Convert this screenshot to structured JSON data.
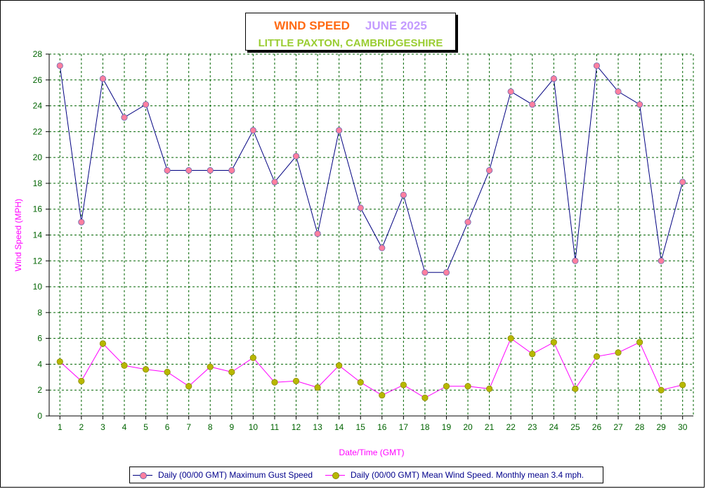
{
  "title": {
    "main": "WIND SPEED",
    "month": "JUNE 2025",
    "subtitle": "LITTLE PAXTON, CAMBRIDGESHIRE"
  },
  "colors": {
    "title_main": "#ff6a13",
    "title_month": "#c39bff",
    "subtitle": "#9acd32",
    "axis_label": "#ff00ff",
    "tick_label": "#006400",
    "grid": "#006400",
    "gust_line": "#000080",
    "gust_marker": "#ff7f9f",
    "mean_line": "#ff00ff",
    "mean_marker": "#b8b800"
  },
  "chart_data": {
    "type": "line",
    "xlabel": "Date/Time (GMT)",
    "ylabel": "Wind Speed (MPH)",
    "ylim": [
      0,
      28
    ],
    "yticks": [
      0,
      2,
      4,
      6,
      8,
      10,
      12,
      14,
      16,
      18,
      20,
      22,
      24,
      26,
      28
    ],
    "categories": [
      "1",
      "2",
      "3",
      "4",
      "5",
      "6",
      "7",
      "8",
      "9",
      "10",
      "11",
      "12",
      "13",
      "14",
      "15",
      "16",
      "17",
      "18",
      "19",
      "20",
      "21",
      "22",
      "23",
      "24",
      "25",
      "26",
      "27",
      "28",
      "29",
      "30"
    ],
    "grid": true,
    "legend_position": "bottom",
    "series": [
      {
        "name": "Daily (00/00 GMT) Maximum Gust Speed",
        "values": [
          27.1,
          15.0,
          26.1,
          23.1,
          24.1,
          19.0,
          19.0,
          19.0,
          19.0,
          22.1,
          18.1,
          20.1,
          14.1,
          22.1,
          16.1,
          13.0,
          17.1,
          11.1,
          11.1,
          15.0,
          19.0,
          25.1,
          24.1,
          26.1,
          12.0,
          27.1,
          25.1,
          24.1,
          12.0,
          18.1
        ]
      },
      {
        "name": "Daily (00/00 GMT) Mean Wind Speed. Monthly mean 3.4 mph.",
        "values": [
          4.2,
          2.7,
          5.6,
          3.9,
          3.6,
          3.4,
          2.3,
          3.8,
          3.4,
          4.5,
          2.6,
          2.7,
          2.2,
          3.9,
          2.6,
          1.6,
          2.4,
          1.4,
          2.3,
          2.3,
          2.1,
          6.0,
          4.8,
          5.7,
          2.1,
          4.6,
          4.9,
          5.7,
          2.0,
          2.4
        ]
      }
    ]
  }
}
